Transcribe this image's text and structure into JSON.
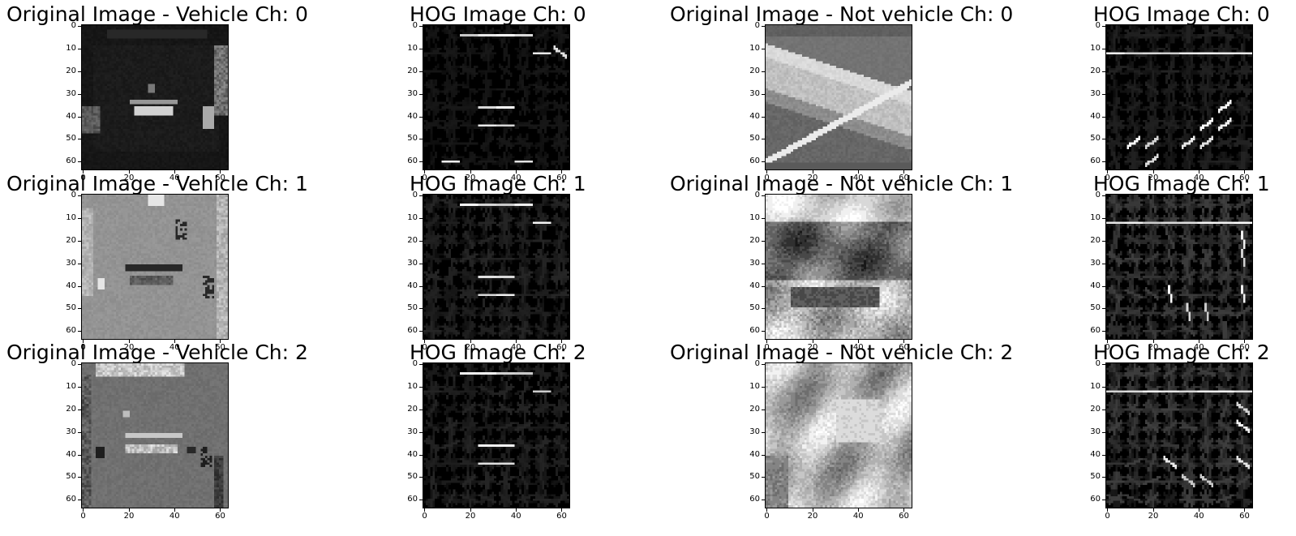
{
  "figure": {
    "rows": [
      {
        "panels": [
          {
            "title": "Original Image - Vehicle Ch: 0",
            "kind": "vehicle-original",
            "channel": 0
          },
          {
            "title": "HOG Image Ch: 0",
            "kind": "vehicle-hog",
            "channel": 0
          },
          {
            "title": "Original Image - Not vehicle Ch: 0",
            "kind": "notvehicle-original",
            "channel": 0
          },
          {
            "title": "HOG Image Ch: 0",
            "kind": "notvehicle-hog",
            "channel": 0
          }
        ]
      },
      {
        "panels": [
          {
            "title": "Original Image - Vehicle Ch: 1",
            "kind": "vehicle-original",
            "channel": 1
          },
          {
            "title": "HOG Image Ch: 1",
            "kind": "vehicle-hog",
            "channel": 1
          },
          {
            "title": "Original Image - Not vehicle Ch: 1",
            "kind": "notvehicle-original",
            "channel": 1
          },
          {
            "title": "HOG Image Ch: 1",
            "kind": "notvehicle-hog",
            "channel": 1
          }
        ]
      },
      {
        "panels": [
          {
            "title": "Original Image - Vehicle Ch: 2",
            "kind": "vehicle-original",
            "channel": 2
          },
          {
            "title": "HOG Image Ch: 2",
            "kind": "vehicle-hog",
            "channel": 2
          },
          {
            "title": "Original Image - Not vehicle Ch: 2",
            "kind": "notvehicle-original",
            "channel": 2
          },
          {
            "title": "HOG Image Ch: 2",
            "kind": "notvehicle-hog",
            "channel": 2
          }
        ]
      }
    ],
    "y_ticks": [
      "0",
      "10",
      "20",
      "30",
      "40",
      "50",
      "60"
    ],
    "x_ticks": [
      "0",
      "20",
      "40",
      "60"
    ],
    "image_size": 64,
    "colormap": "gray"
  }
}
